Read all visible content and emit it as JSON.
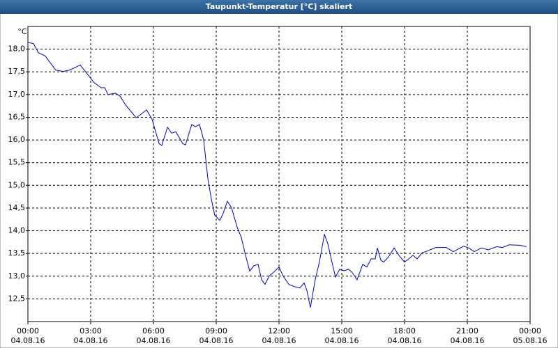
{
  "chart_data": {
    "type": "line",
    "title": "Taupunkt-Temperatur [°C] skaliert",
    "unit": "°C",
    "x": [
      0,
      0.27,
      0.5,
      0.83,
      1.33,
      1.67,
      2,
      2.5,
      2.83,
      3.17,
      3.5,
      3.67,
      3.83,
      4.17,
      4.4,
      4.67,
      5.17,
      5.33,
      5.67,
      5.93,
      6.27,
      6.4,
      6.67,
      6.87,
      7.07,
      7.4,
      7.53,
      7.83,
      8,
      8.2,
      8.4,
      8.6,
      8.77,
      8.93,
      9.17,
      9.33,
      9.53,
      9.73,
      10,
      10.2,
      10.4,
      10.6,
      10.8,
      11,
      11.17,
      11.33,
      11.53,
      11.73,
      12,
      12.2,
      12.47,
      12.73,
      13,
      13.2,
      13.33,
      13.5,
      13.73,
      13.93,
      14.17,
      14.33,
      14.53,
      14.7,
      14.9,
      15.1,
      15.33,
      15.5,
      15.73,
      16,
      16.2,
      16.4,
      16.6,
      16.7,
      16.87,
      17,
      17.23,
      17.5,
      17.73,
      18,
      18.2,
      18.4,
      18.6,
      18.83,
      19.17,
      19.5,
      20,
      20.33,
      20.83,
      21.07,
      21.33,
      21.67,
      22,
      22.4,
      22.67,
      23,
      23.5,
      23.83
    ],
    "series": [
      {
        "name": "Taupunkt-Temperatur",
        "color": "#0000cc",
        "values": [
          18.15,
          18.12,
          17.92,
          17.85,
          17.54,
          17.51,
          17.54,
          17.65,
          17.46,
          17.26,
          17.15,
          17.15,
          17.0,
          17.03,
          16.97,
          16.77,
          16.49,
          16.54,
          16.66,
          16.46,
          15.92,
          15.88,
          16.28,
          16.15,
          16.18,
          15.92,
          15.89,
          16.34,
          16.29,
          16.34,
          16.0,
          15.15,
          14.69,
          14.34,
          14.23,
          14.38,
          14.65,
          14.51,
          14.08,
          13.85,
          13.46,
          13.11,
          13.23,
          13.26,
          12.92,
          12.82,
          13.0,
          13.08,
          13.2,
          13.0,
          12.82,
          12.77,
          12.74,
          12.85,
          12.69,
          12.31,
          12.92,
          13.31,
          13.92,
          13.72,
          13.31,
          12.98,
          13.15,
          13.12,
          13.15,
          13.08,
          12.92,
          13.26,
          13.2,
          13.38,
          13.38,
          13.62,
          13.35,
          13.31,
          13.42,
          13.62,
          13.46,
          13.31,
          13.38,
          13.46,
          13.38,
          13.51,
          13.57,
          13.63,
          13.63,
          13.54,
          13.66,
          13.62,
          13.54,
          13.62,
          13.58,
          13.65,
          13.63,
          13.69,
          13.68,
          13.65
        ]
      }
    ],
    "xlim": [
      0,
      24
    ],
    "xticks": [
      {
        "value": 0,
        "label": "00:00",
        "date": "04.08.16"
      },
      {
        "value": 3,
        "label": "03:00",
        "date": "04.08.16"
      },
      {
        "value": 6,
        "label": "06:00",
        "date": "04.08.16"
      },
      {
        "value": 9,
        "label": "09:00",
        "date": "04.08.16"
      },
      {
        "value": 12,
        "label": "12:00",
        "date": "04.08.16"
      },
      {
        "value": 15,
        "label": "15:00",
        "date": "04.08.16"
      },
      {
        "value": 18,
        "label": "18:00",
        "date": "04.08.16"
      },
      {
        "value": 21,
        "label": "21:00",
        "date": "04.08.16"
      },
      {
        "value": 24,
        "label": "00:00",
        "date": "05.08.16"
      }
    ],
    "ylim": [
      12,
      18.5
    ],
    "yticks": [
      {
        "value": 12.5,
        "label": "12,5"
      },
      {
        "value": 13,
        "label": "13,0"
      },
      {
        "value": 13.5,
        "label": "13,5"
      },
      {
        "value": 14,
        "label": "14,0"
      },
      {
        "value": 14.5,
        "label": "14,5"
      },
      {
        "value": 15,
        "label": "15,0"
      },
      {
        "value": 15.5,
        "label": "15,5"
      },
      {
        "value": 16,
        "label": "16,0"
      },
      {
        "value": 16.5,
        "label": "16,5"
      },
      {
        "value": 17,
        "label": "17,0"
      },
      {
        "value": 17.5,
        "label": "17,5"
      },
      {
        "value": 18,
        "label": "18,0"
      }
    ],
    "grid": true
  }
}
